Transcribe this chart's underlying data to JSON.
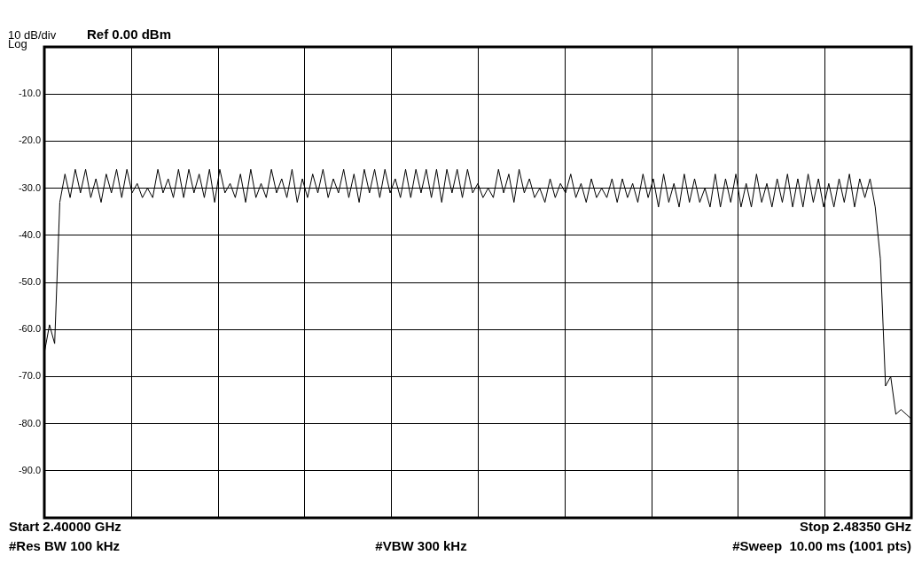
{
  "chart_data": {
    "type": "line",
    "annotations": [
      "10 dB/div",
      "Log",
      "Ref 0.00 dBm",
      "Start 2.40000 GHz",
      "Stop 2.48350 GHz",
      "#Res BW 100 kHz",
      "#VBW 300 kHz",
      "#Sweep  10.00 ms (1001 pts)"
    ],
    "categories": [
      null,
      null,
      null,
      null,
      null,
      null,
      null,
      null,
      null,
      null,
      null,
      null,
      null,
      null,
      null,
      null,
      null,
      null,
      null,
      null,
      null,
      null,
      null,
      null,
      null,
      null,
      null,
      null,
      null,
      null,
      null,
      null,
      null,
      null,
      null,
      null,
      null,
      null,
      null,
      null,
      null,
      null,
      null,
      null,
      null,
      null,
      null,
      null,
      null,
      null,
      null,
      null,
      null,
      null,
      null,
      null,
      null,
      null,
      null,
      null,
      null,
      null,
      null,
      null,
      null,
      null,
      null,
      null,
      null,
      null,
      null,
      null,
      null,
      null,
      null,
      null,
      null,
      null,
      null,
      null,
      null,
      null,
      null,
      null,
      null,
      null,
      null,
      null,
      null,
      null,
      null,
      null,
      null,
      null,
      null,
      null,
      null,
      null,
      null,
      null,
      null,
      null,
      null,
      null,
      null,
      null,
      null,
      null,
      null,
      null,
      null,
      null,
      null,
      null,
      null,
      null,
      null,
      null,
      null,
      null,
      null,
      null,
      null,
      null,
      null,
      null,
      null,
      null,
      null,
      null,
      null,
      null,
      null,
      null,
      null,
      null,
      null,
      null,
      null,
      null,
      null,
      null,
      null,
      null,
      null,
      null,
      null,
      null,
      null,
      null,
      null,
      null,
      null,
      null,
      null,
      null,
      null,
      null,
      null,
      null,
      null,
      null,
      null,
      null,
      null,
      null,
      null,
      null,
      null
    ],
    "ylim": [
      -100,
      0
    ],
    "yticks": [
      {
        "value": -100,
        "label": null
      },
      {
        "value": -90,
        "label": "-90.0"
      },
      {
        "value": -80,
        "label": "-80.0"
      },
      {
        "value": -70,
        "label": "-70.0"
      },
      {
        "value": -60,
        "label": "-60.0"
      },
      {
        "value": -50,
        "label": "-50.0"
      },
      {
        "value": -40,
        "label": "-40.0"
      },
      {
        "value": -30,
        "label": "-30.0"
      },
      {
        "value": -20,
        "label": "-20.0"
      },
      {
        "value": -10,
        "label": "-10.0"
      },
      {
        "value": 0,
        "label": null
      }
    ],
    "grid": true,
    "tick_labels": "y",
    "marker": "none",
    "line_style": "solid",
    "series": [
      {
        "color": "#000000",
        "values": [
          -65,
          -59,
          -63,
          -33,
          -27,
          -32,
          -26,
          -31,
          -26,
          -32,
          -28,
          -33,
          -27,
          -31,
          -26,
          -32,
          -26,
          -31,
          -29,
          -32,
          -30,
          -32,
          -26,
          -31,
          -28,
          -32,
          -26,
          -32,
          -26,
          -31,
          -27,
          -32,
          -26,
          -33,
          -26,
          -31,
          -29,
          -32,
          -27,
          -33,
          -26,
          -32,
          -29,
          -32,
          -26,
          -31,
          -28,
          -32,
          -26,
          -33,
          -28,
          -32,
          -27,
          -31,
          -26,
          -32,
          -28,
          -31,
          -26,
          -32,
          -27,
          -33,
          -26,
          -31,
          -26,
          -32,
          -26,
          -31,
          -28,
          -32,
          -26,
          -32,
          -26,
          -31,
          -26,
          -32,
          -26,
          -33,
          -26,
          -31,
          -26,
          -32,
          -26,
          -31,
          -29,
          -32,
          -30,
          -32,
          -26,
          -31,
          -27,
          -33,
          -26,
          -31,
          -28,
          -32,
          -30,
          -33,
          -28,
          -32,
          -29,
          -31,
          -27,
          -32,
          -29,
          -33,
          -28,
          -32,
          -30,
          -32,
          -28,
          -33,
          -28,
          -32,
          -29,
          -33,
          -27,
          -32,
          -28,
          -34,
          -27,
          -33,
          -29,
          -34,
          -27,
          -33,
          -28,
          -33,
          -30,
          -34,
          -27,
          -34,
          -28,
          -33,
          -27,
          -34,
          -29,
          -34,
          -27,
          -33,
          -29,
          -34,
          -28,
          -33,
          -27,
          -34,
          -28,
          -34,
          -27,
          -33,
          -28,
          -34,
          -29,
          -34,
          -28,
          -33,
          -27,
          -34,
          -28,
          -32,
          -28,
          -34,
          -45,
          -72,
          -70,
          -78,
          -77,
          -78,
          -79
        ]
      }
    ]
  }
}
